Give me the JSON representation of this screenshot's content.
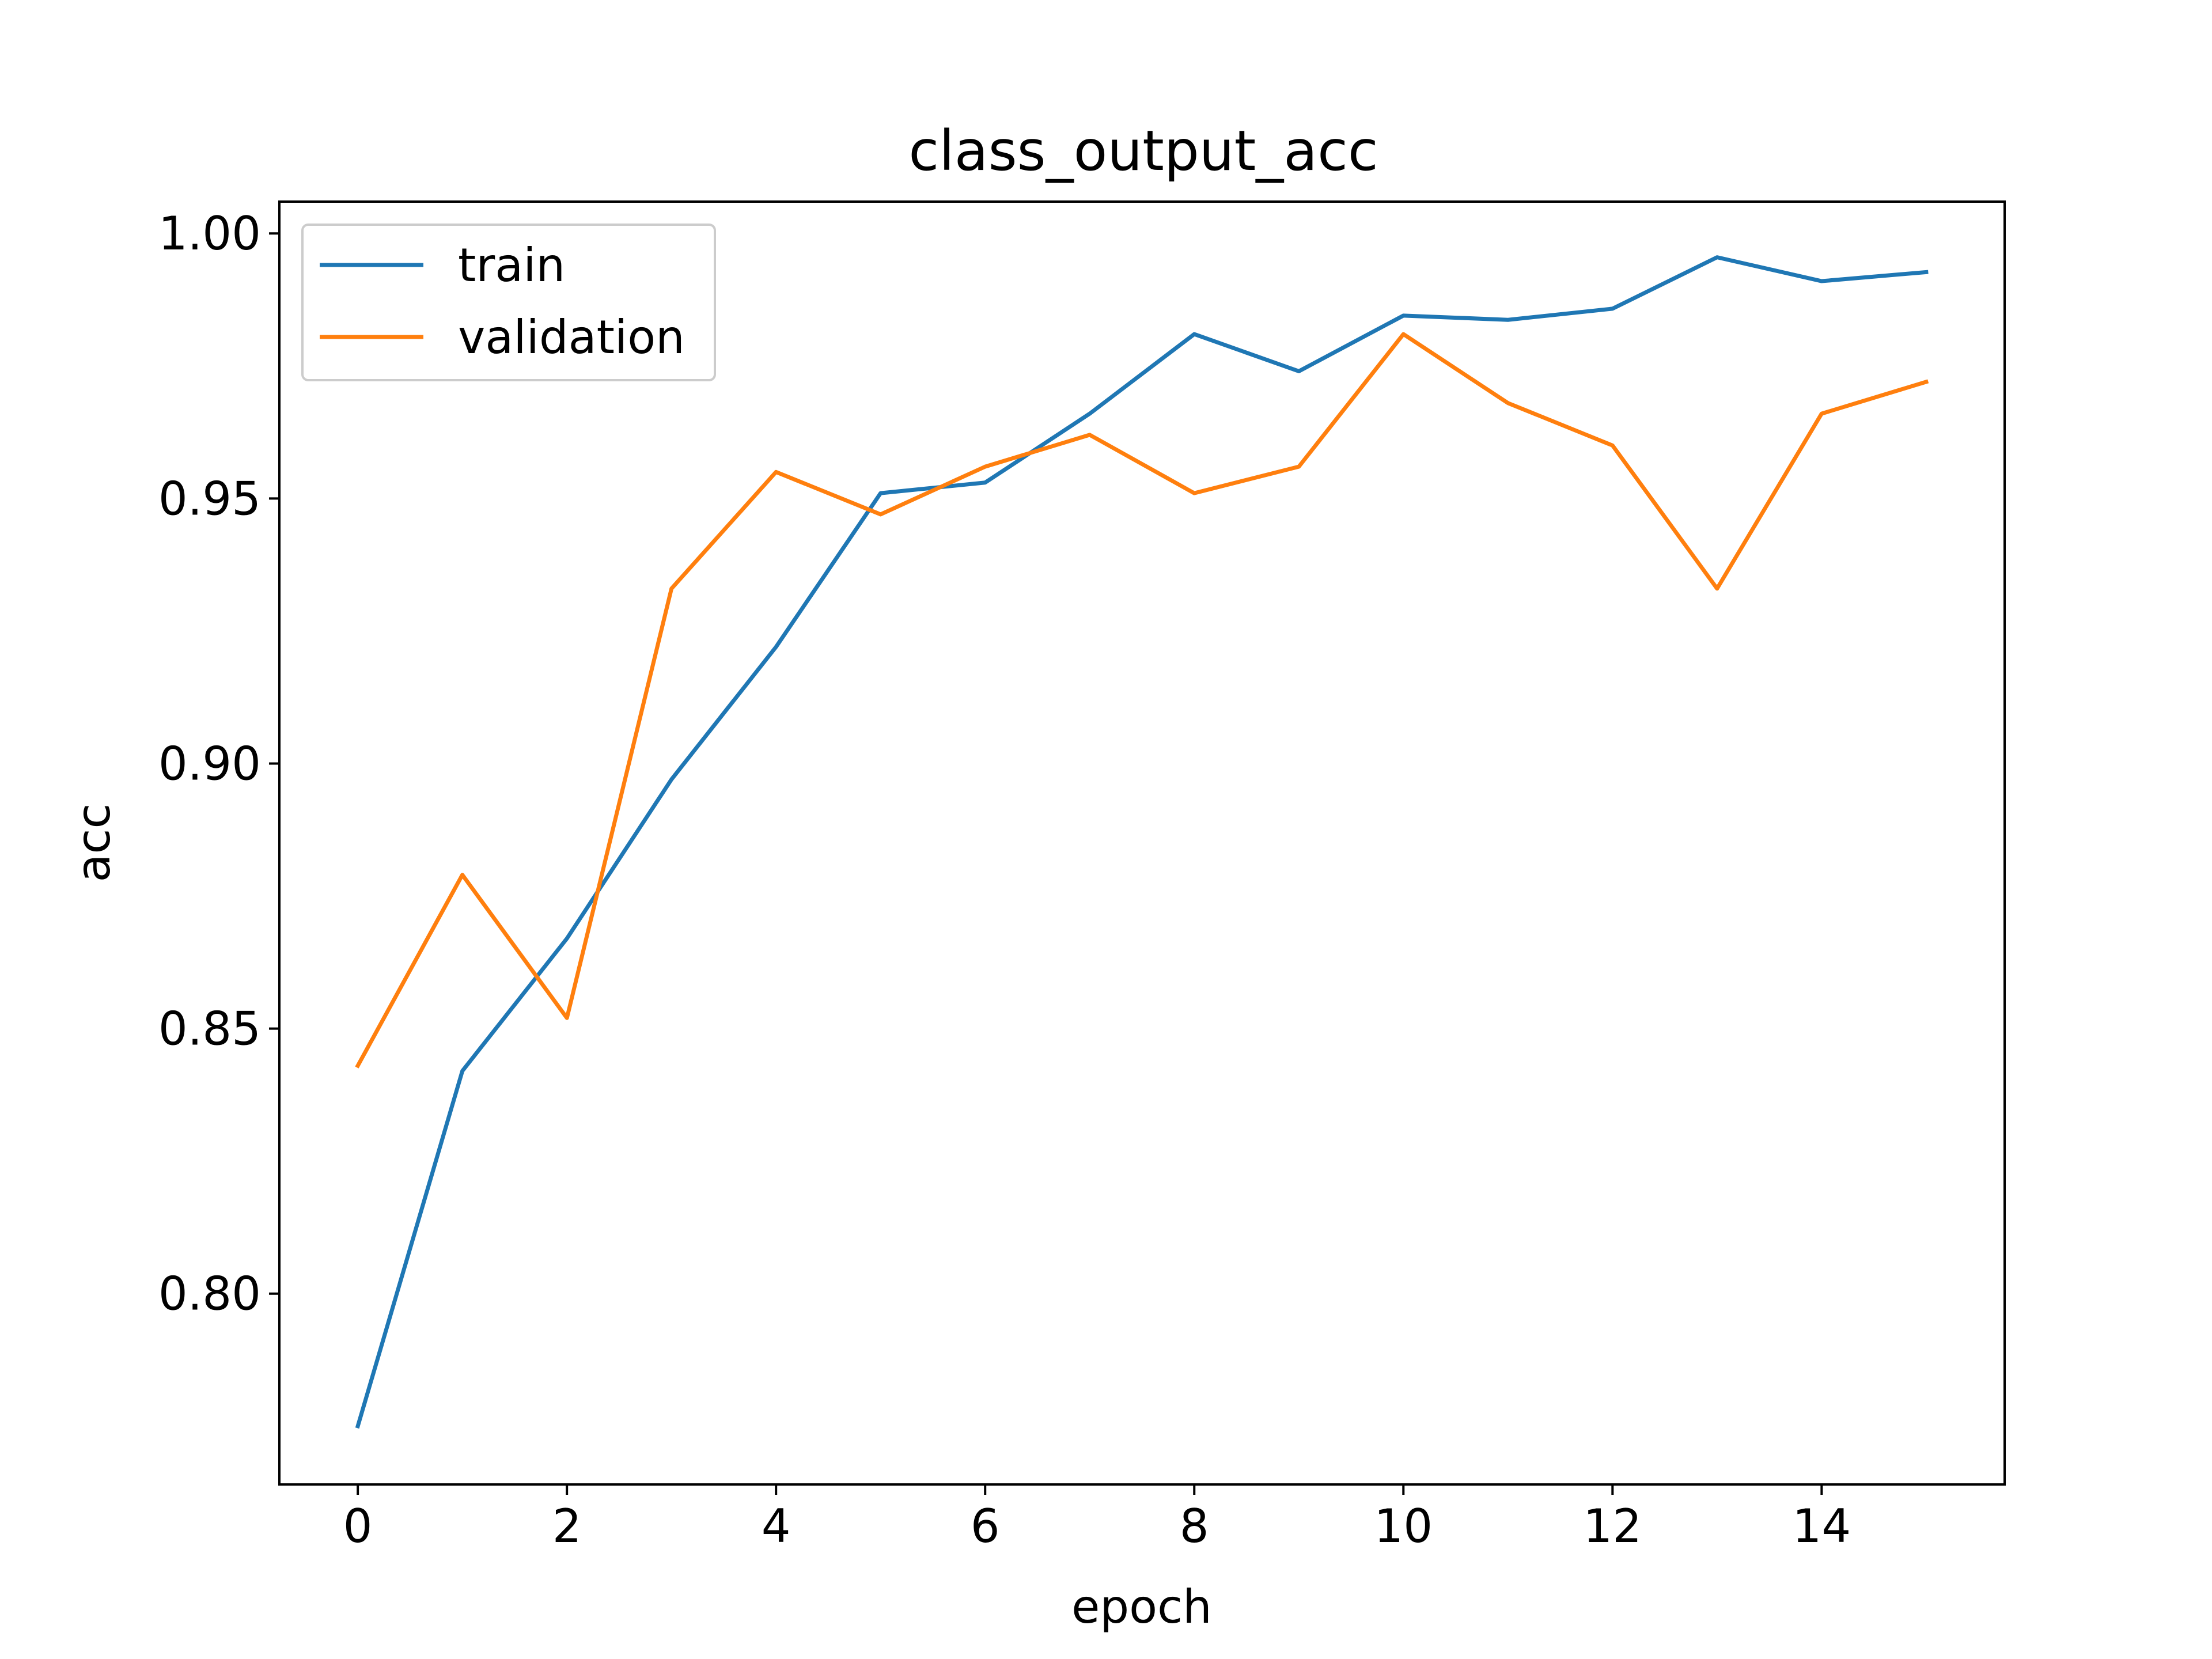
{
  "chart_data": {
    "type": "line",
    "title": "class_output_acc",
    "xlabel": "epoch",
    "ylabel": "acc",
    "xlim": [
      -0.75,
      15.75
    ],
    "ylim": [
      0.764,
      1.006
    ],
    "xticks": [
      0,
      2,
      4,
      6,
      8,
      10,
      12,
      14
    ],
    "xtick_labels": [
      "0",
      "2",
      "4",
      "6",
      "8",
      "10",
      "12",
      "14"
    ],
    "yticks": [
      0.8,
      0.85,
      0.9,
      0.95,
      1.0
    ],
    "ytick_labels": [
      "0.80",
      "0.85",
      "0.90",
      "0.95",
      "1.00"
    ],
    "grid": false,
    "legend": {
      "placement": "upper-left"
    },
    "x": [
      0,
      1,
      2,
      3,
      4,
      5,
      6,
      7,
      8,
      9,
      10,
      11,
      12,
      13,
      14,
      15
    ],
    "series": [
      {
        "name": "train",
        "color": "#1f77b4",
        "values": [
          0.775,
          0.842,
          0.867,
          0.897,
          0.922,
          0.951,
          0.953,
          0.966,
          0.981,
          0.974,
          0.9845,
          0.9837,
          0.9858,
          0.9955,
          0.991,
          0.9927
        ]
      },
      {
        "name": "validation",
        "color": "#ff7f0e",
        "values": [
          0.843,
          0.879,
          0.852,
          0.933,
          0.955,
          0.947,
          0.956,
          0.962,
          0.951,
          0.956,
          0.981,
          0.968,
          0.96,
          0.933,
          0.966,
          0.972
        ]
      }
    ]
  }
}
